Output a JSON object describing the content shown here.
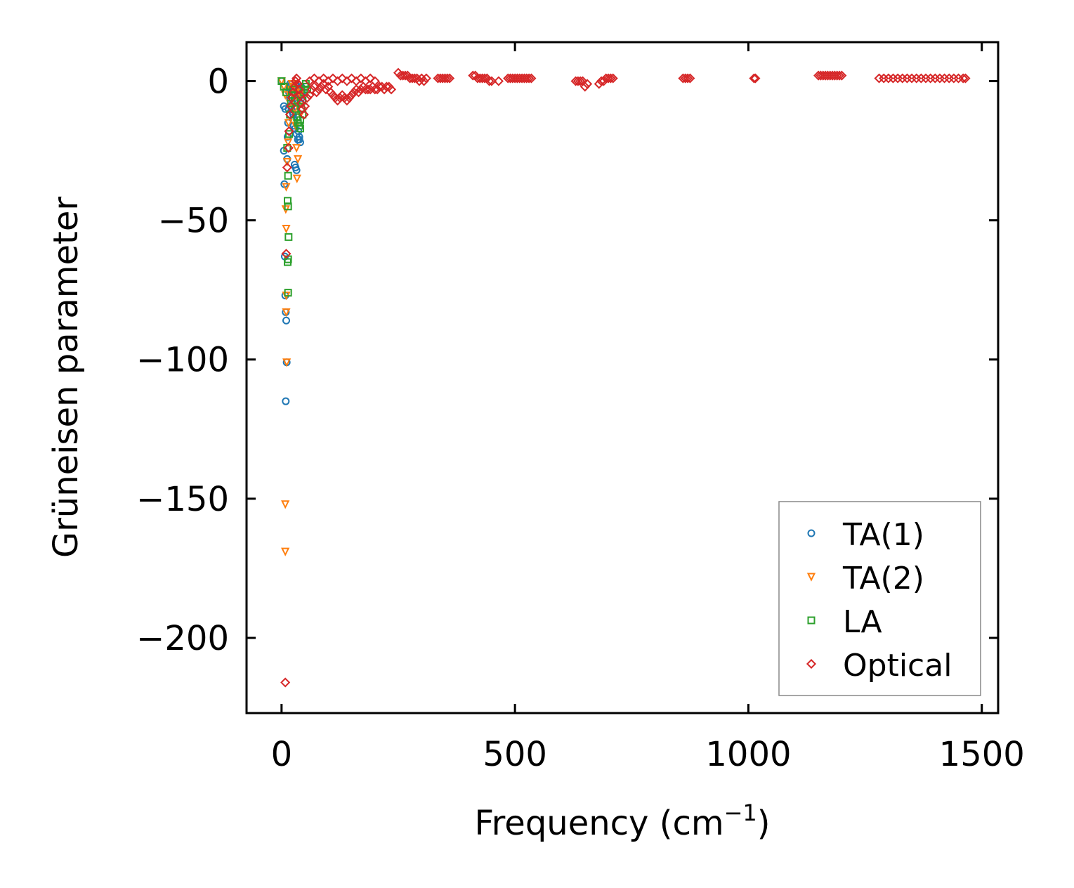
{
  "chart_data": {
    "type": "scatter",
    "xlabel": "Frequency (cm",
    "xlabel_sup": "−1",
    "xlabel_suffix": ")",
    "ylabel": "Grüneisen parameter",
    "xlim": [
      -75,
      1535
    ],
    "ylim": [
      -227,
      14
    ],
    "xticks": [
      0,
      500,
      1000,
      1500
    ],
    "xtick_labels": [
      "0",
      "500",
      "1000",
      "1500"
    ],
    "yticks": [
      0,
      -50,
      -100,
      -150,
      -200
    ],
    "ytick_labels": [
      "0",
      "−50",
      "−100",
      "−150",
      "−200"
    ],
    "legend": "lower-right",
    "grid": false,
    "series": [
      {
        "name": "TA(1)",
        "marker": "circle",
        "color": "#1f77b4",
        "points": [
          [
            0,
            0
          ],
          [
            5,
            -9
          ],
          [
            8,
            -10
          ],
          [
            5,
            -25
          ],
          [
            6,
            -37
          ],
          [
            7,
            -63
          ],
          [
            8,
            -77
          ],
          [
            9,
            -83
          ],
          [
            10,
            -86
          ],
          [
            11,
            -101
          ],
          [
            9,
            -115
          ],
          [
            12,
            -28
          ],
          [
            13,
            -20
          ],
          [
            14,
            -15
          ],
          [
            15,
            -10
          ],
          [
            16,
            -4
          ],
          [
            17,
            -2
          ],
          [
            18,
            -1
          ],
          [
            20,
            -2
          ],
          [
            22,
            -5
          ],
          [
            24,
            -8
          ],
          [
            25,
            -12
          ],
          [
            26,
            -16
          ],
          [
            28,
            -30
          ],
          [
            30,
            -31
          ],
          [
            32,
            -32
          ],
          [
            27,
            -2
          ],
          [
            30,
            -3
          ],
          [
            33,
            -4
          ],
          [
            35,
            -5
          ],
          [
            37,
            -6
          ],
          [
            40,
            -8
          ],
          [
            22,
            -1
          ],
          [
            25,
            -3
          ],
          [
            28,
            -6
          ],
          [
            31,
            -9
          ],
          [
            34,
            -13
          ],
          [
            36,
            -18
          ],
          [
            38,
            -20
          ],
          [
            40,
            -22
          ],
          [
            42,
            -2
          ],
          [
            44,
            -4
          ],
          [
            45,
            -7
          ],
          [
            30,
            -1
          ],
          [
            33,
            -2
          ],
          [
            36,
            -3
          ],
          [
            39,
            -4
          ],
          [
            41,
            -5
          ],
          [
            43,
            -6
          ],
          [
            20,
            -3
          ],
          [
            18,
            -6
          ],
          [
            21,
            -9
          ],
          [
            23,
            -11
          ],
          [
            26,
            -14
          ],
          [
            29,
            -17
          ],
          [
            32,
            -19
          ],
          [
            35,
            -21
          ],
          [
            38,
            -21
          ]
        ]
      },
      {
        "name": "TA(2)",
        "marker": "triangle-down",
        "color": "#ff7f0e",
        "points": [
          [
            0,
            0
          ],
          [
            5,
            -2
          ],
          [
            8,
            -5
          ],
          [
            9,
            -46
          ],
          [
            10,
            -53
          ],
          [
            10,
            -83
          ],
          [
            11,
            -101
          ],
          [
            10,
            -77
          ],
          [
            8,
            -152
          ],
          [
            8,
            -169
          ],
          [
            10,
            -38
          ],
          [
            12,
            -29
          ],
          [
            14,
            -22
          ],
          [
            15,
            -15
          ],
          [
            18,
            -8
          ],
          [
            20,
            -3
          ],
          [
            22,
            -1
          ],
          [
            25,
            -5
          ],
          [
            28,
            -10
          ],
          [
            30,
            -16
          ],
          [
            32,
            -24
          ],
          [
            33,
            -35
          ],
          [
            35,
            -28
          ],
          [
            25,
            -2
          ],
          [
            28,
            -1
          ],
          [
            31,
            -3
          ],
          [
            34,
            -6
          ],
          [
            37,
            -9
          ],
          [
            40,
            -12
          ],
          [
            42,
            -4
          ]
        ]
      },
      {
        "name": "LA",
        "marker": "square",
        "color": "#2ca02c",
        "points": [
          [
            0,
            0
          ],
          [
            5,
            -2
          ],
          [
            10,
            -4
          ],
          [
            12,
            -24
          ],
          [
            14,
            -34
          ],
          [
            13,
            -43
          ],
          [
            14,
            -45
          ],
          [
            15,
            -56
          ],
          [
            14,
            -64
          ],
          [
            13,
            -65
          ],
          [
            14,
            -76
          ],
          [
            16,
            -19
          ],
          [
            18,
            -12
          ],
          [
            20,
            -8
          ],
          [
            22,
            -5
          ],
          [
            25,
            -3
          ],
          [
            28,
            -7
          ],
          [
            30,
            -10
          ],
          [
            33,
            -13
          ],
          [
            35,
            -15
          ],
          [
            38,
            -16
          ],
          [
            40,
            -17
          ],
          [
            42,
            -10
          ],
          [
            45,
            -7
          ],
          [
            48,
            -4
          ],
          [
            50,
            -2
          ],
          [
            52,
            -1
          ],
          [
            55,
            -3
          ],
          [
            45,
            -12
          ],
          [
            40,
            -14
          ]
        ]
      },
      {
        "name": "Optical",
        "marker": "diamond",
        "color": "#d62728",
        "points": [
          [
            8,
            -216
          ],
          [
            10,
            -62
          ],
          [
            12,
            -31
          ],
          [
            15,
            -24
          ],
          [
            16,
            -18
          ],
          [
            18,
            -12
          ],
          [
            20,
            -9
          ],
          [
            22,
            -6
          ],
          [
            25,
            -4
          ],
          [
            28,
            -2
          ],
          [
            30,
            0
          ],
          [
            32,
            1
          ],
          [
            35,
            -1
          ],
          [
            38,
            -3
          ],
          [
            40,
            -5
          ],
          [
            42,
            -8
          ],
          [
            45,
            -10
          ],
          [
            48,
            -12
          ],
          [
            50,
            -9
          ],
          [
            55,
            -6
          ],
          [
            60,
            -5
          ],
          [
            65,
            -3
          ],
          [
            70,
            -2
          ],
          [
            75,
            -4
          ],
          [
            80,
            -3
          ],
          [
            85,
            -2
          ],
          [
            90,
            -1
          ],
          [
            95,
            -3
          ],
          [
            100,
            -2
          ],
          [
            105,
            -4
          ],
          [
            110,
            -5
          ],
          [
            115,
            -6
          ],
          [
            120,
            -7
          ],
          [
            125,
            -6
          ],
          [
            130,
            -5
          ],
          [
            135,
            -6
          ],
          [
            140,
            -7
          ],
          [
            145,
            -6
          ],
          [
            150,
            -5
          ],
          [
            155,
            -4
          ],
          [
            160,
            -3
          ],
          [
            165,
            -4
          ],
          [
            170,
            -3
          ],
          [
            175,
            -2
          ],
          [
            180,
            -3
          ],
          [
            185,
            -3
          ],
          [
            190,
            -3
          ],
          [
            195,
            -2
          ],
          [
            200,
            -3
          ],
          [
            205,
            -3
          ],
          [
            210,
            -2
          ],
          [
            215,
            -2
          ],
          [
            220,
            -3
          ],
          [
            225,
            -2
          ],
          [
            230,
            -2
          ],
          [
            235,
            -3
          ],
          [
            60,
            0
          ],
          [
            70,
            1
          ],
          [
            80,
            0
          ],
          [
            90,
            1
          ],
          [
            100,
            0
          ],
          [
            110,
            1
          ],
          [
            120,
            0
          ],
          [
            130,
            1
          ],
          [
            140,
            0
          ],
          [
            150,
            1
          ],
          [
            160,
            0
          ],
          [
            170,
            1
          ],
          [
            180,
            0
          ],
          [
            190,
            1
          ],
          [
            200,
            0
          ],
          [
            250,
            3
          ],
          [
            255,
            2
          ],
          [
            260,
            2
          ],
          [
            265,
            2
          ],
          [
            270,
            2
          ],
          [
            275,
            1
          ],
          [
            280,
            1
          ],
          [
            285,
            1
          ],
          [
            290,
            1
          ],
          [
            295,
            0
          ],
          [
            300,
            1
          ],
          [
            305,
            0
          ],
          [
            310,
            1
          ],
          [
            335,
            1
          ],
          [
            340,
            1
          ],
          [
            345,
            1
          ],
          [
            350,
            1
          ],
          [
            355,
            1
          ],
          [
            360,
            1
          ],
          [
            410,
            2
          ],
          [
            415,
            2
          ],
          [
            420,
            1
          ],
          [
            425,
            1
          ],
          [
            430,
            1
          ],
          [
            435,
            1
          ],
          [
            440,
            1
          ],
          [
            445,
            0
          ],
          [
            450,
            0
          ],
          [
            465,
            0
          ],
          [
            485,
            1
          ],
          [
            490,
            1
          ],
          [
            495,
            1
          ],
          [
            500,
            1
          ],
          [
            505,
            1
          ],
          [
            510,
            1
          ],
          [
            515,
            1
          ],
          [
            520,
            1
          ],
          [
            525,
            1
          ],
          [
            530,
            1
          ],
          [
            535,
            1
          ],
          [
            630,
            0
          ],
          [
            635,
            0
          ],
          [
            640,
            0
          ],
          [
            645,
            0
          ],
          [
            650,
            -2
          ],
          [
            655,
            -1
          ],
          [
            680,
            -1
          ],
          [
            685,
            0
          ],
          [
            690,
            0
          ],
          [
            695,
            1
          ],
          [
            700,
            1
          ],
          [
            705,
            1
          ],
          [
            710,
            1
          ],
          [
            860,
            1
          ],
          [
            865,
            1
          ],
          [
            870,
            1
          ],
          [
            875,
            1
          ],
          [
            1012,
            1
          ],
          [
            1015,
            1
          ],
          [
            1150,
            2
          ],
          [
            1155,
            2
          ],
          [
            1160,
            2
          ],
          [
            1165,
            2
          ],
          [
            1170,
            2
          ],
          [
            1175,
            2
          ],
          [
            1180,
            2
          ],
          [
            1185,
            2
          ],
          [
            1190,
            2
          ],
          [
            1195,
            2
          ],
          [
            1200,
            2
          ],
          [
            1280,
            1
          ],
          [
            1290,
            1
          ],
          [
            1300,
            1
          ],
          [
            1310,
            1
          ],
          [
            1320,
            1
          ],
          [
            1330,
            1
          ],
          [
            1340,
            1
          ],
          [
            1350,
            1
          ],
          [
            1360,
            1
          ],
          [
            1370,
            1
          ],
          [
            1380,
            1
          ],
          [
            1390,
            1
          ],
          [
            1400,
            1
          ],
          [
            1410,
            1
          ],
          [
            1420,
            1
          ],
          [
            1430,
            1
          ],
          [
            1440,
            1
          ],
          [
            1450,
            1
          ],
          [
            1460,
            1
          ],
          [
            1465,
            1
          ]
        ]
      }
    ]
  }
}
